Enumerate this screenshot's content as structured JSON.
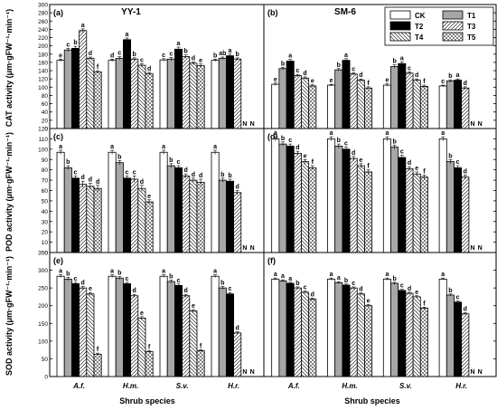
{
  "chart_data": [
    {
      "id": "a",
      "panel_label": "(a)",
      "title": "YY-1",
      "type": "bar",
      "ylabel": "CAT activity (μm·gFW⁻¹·min⁻¹)",
      "ylim": [
        0,
        300
      ],
      "yticks": [
        0,
        20,
        40,
        60,
        80,
        100,
        120,
        140,
        160,
        180,
        200,
        220,
        240,
        260,
        280,
        300
      ],
      "categories": [
        "A.f.",
        "H.m.",
        "S.v.",
        "H.r."
      ],
      "values": [
        [
          165,
          190,
          194,
          237,
          170,
          137
        ],
        [
          165,
          170,
          215,
          168,
          153,
          133
        ],
        [
          166,
          168,
          192,
          174,
          158,
          152
        ],
        [
          165,
          170,
          176,
          168,
          null,
          null
        ]
      ],
      "errors": [
        [
          3,
          4,
          5,
          4,
          3,
          3
        ],
        [
          3,
          4,
          4,
          3,
          4,
          3
        ],
        [
          3,
          4,
          5,
          4,
          3,
          4
        ],
        [
          3,
          3,
          4,
          3,
          null,
          null
        ]
      ],
      "letters": [
        [
          "e",
          "c",
          "b",
          "a",
          "d",
          "f"
        ],
        [
          "d",
          "c",
          "a",
          "b",
          "c",
          "d"
        ],
        [
          "c",
          "c",
          "a",
          "b",
          "d",
          "e"
        ],
        [
          "b",
          "ab",
          "a",
          "b",
          "N",
          "N"
        ]
      ]
    },
    {
      "id": "b",
      "panel_label": "(b)",
      "title": "SM-6",
      "type": "bar",
      "ylim": [
        0,
        300
      ],
      "categories": [
        "A.f.",
        "H.m.",
        "S.v.",
        "H.r."
      ],
      "values": [
        [
          107,
          145,
          163,
          128,
          122,
          103
        ],
        [
          105,
          142,
          165,
          132,
          117,
          98
        ],
        [
          105,
          150,
          157,
          134,
          117,
          102
        ],
        [
          103,
          115,
          117,
          98,
          null,
          null
        ]
      ],
      "errors": [
        [
          3,
          3,
          4,
          3,
          3,
          3
        ],
        [
          2,
          3,
          4,
          3,
          3,
          3
        ],
        [
          3,
          4,
          4,
          3,
          3,
          3
        ],
        [
          2,
          3,
          3,
          3,
          null,
          null
        ]
      ],
      "letters": [
        [
          "e",
          "b",
          "a",
          "c",
          "d",
          "e"
        ],
        [
          "e",
          "b",
          "a",
          "c",
          "d",
          "f"
        ],
        [
          "e",
          "b",
          "a",
          "c",
          "d",
          "f"
        ],
        [
          "c",
          "b",
          "a",
          "d",
          "N",
          "N"
        ]
      ],
      "legend": [
        "CK",
        "T1",
        "T2",
        "T3",
        "T4",
        "T5"
      ]
    },
    {
      "id": "c",
      "panel_label": "(c)",
      "title": "",
      "type": "bar",
      "ylabel": "POD activity (μm·gFW⁻¹·min⁻¹)",
      "ylim": [
        0,
        120
      ],
      "yticks": [
        0,
        10,
        20,
        30,
        40,
        50,
        60,
        70,
        80,
        90,
        100,
        110,
        120
      ],
      "categories": [
        "A.f.",
        "H.m.",
        "S.v.",
        "H.r."
      ],
      "values": [
        [
          97,
          82,
          72,
          66,
          64,
          62
        ],
        [
          97,
          87,
          72,
          71,
          62,
          49
        ],
        [
          97,
          84,
          82,
          74,
          70,
          68
        ],
        [
          97,
          70,
          69,
          58,
          null,
          null
        ]
      ],
      "errors": [
        [
          2,
          2,
          2,
          3,
          3,
          3
        ],
        [
          2,
          2,
          2,
          3,
          3,
          2
        ],
        [
          2,
          2,
          2,
          2,
          2,
          3
        ],
        [
          2,
          2,
          2,
          2,
          null,
          null
        ]
      ],
      "letters": [
        [
          "a",
          "b",
          "c",
          "d",
          "d",
          "d"
        ],
        [
          "a",
          "b",
          "c",
          "c",
          "d",
          "e"
        ],
        [
          "a",
          "b",
          "c",
          "d",
          "d",
          "d"
        ],
        [
          "a",
          "b",
          "b",
          "d",
          "N",
          "N"
        ]
      ]
    },
    {
      "id": "d",
      "panel_label": "(d)",
      "title": "",
      "type": "bar",
      "ylim": [
        0,
        120
      ],
      "categories": [
        "A.f.",
        "H.m.",
        "S.v.",
        "H.r."
      ],
      "values": [
        [
          110,
          105,
          103,
          96,
          88,
          82
        ],
        [
          110,
          103,
          100,
          91,
          84,
          78
        ],
        [
          110,
          102,
          92,
          81,
          76,
          73
        ],
        [
          110,
          88,
          82,
          73,
          null,
          null
        ]
      ],
      "errors": [
        [
          2,
          2,
          2,
          2,
          2,
          2
        ],
        [
          2,
          2,
          2,
          2,
          2,
          2
        ],
        [
          2,
          2,
          2,
          2,
          2,
          2
        ],
        [
          2,
          2,
          2,
          2,
          null,
          null
        ]
      ],
      "letters": [
        [
          "a",
          "b",
          "c",
          "d",
          "e",
          "f"
        ],
        [
          "a",
          "b",
          "c",
          "d",
          "e",
          "f"
        ],
        [
          "a",
          "b",
          "c",
          "d",
          "e",
          "f"
        ],
        [
          "a",
          "b",
          "c",
          "d",
          "N",
          "N"
        ]
      ]
    },
    {
      "id": "e",
      "panel_label": "(e)",
      "title": "",
      "type": "bar",
      "ylabel": "SOD activity (μm·gFW⁻¹·min⁻¹)",
      "ylim": [
        0,
        350
      ],
      "yticks": [
        0,
        50,
        100,
        150,
        200,
        250,
        300,
        350
      ],
      "categories": [
        "A.f.",
        "H.m.",
        "S.v.",
        "H.r."
      ],
      "values": [
        [
          283,
          275,
          262,
          250,
          233,
          63
        ],
        [
          283,
          278,
          262,
          228,
          165,
          70
        ],
        [
          283,
          268,
          257,
          228,
          185,
          73
        ],
        [
          283,
          250,
          233,
          123,
          null,
          null
        ]
      ],
      "errors": [
        [
          4,
          5,
          4,
          4,
          4,
          3
        ],
        [
          4,
          4,
          4,
          4,
          4,
          3
        ],
        [
          4,
          4,
          4,
          4,
          4,
          3
        ],
        [
          4,
          4,
          4,
          3,
          null,
          null
        ]
      ],
      "letters": [
        [
          "a",
          "b",
          "c",
          "d",
          "e",
          "f"
        ],
        [
          "a",
          "b",
          "c",
          "d",
          "e",
          "f"
        ],
        [
          "a",
          "b",
          "c",
          "d",
          "e",
          "f"
        ],
        [
          "a",
          "b",
          "c",
          "d",
          "N",
          "N"
        ]
      ]
    },
    {
      "id": "f",
      "panel_label": "(f)",
      "title": "",
      "type": "bar",
      "ylim": [
        0,
        350
      ],
      "categories": [
        "A.f.",
        "H.m.",
        "S.v.",
        "H.r."
      ],
      "values": [
        [
          275,
          270,
          263,
          250,
          238,
          218
        ],
        [
          275,
          265,
          258,
          250,
          233,
          200
        ],
        [
          275,
          263,
          243,
          235,
          225,
          193
        ],
        [
          275,
          230,
          210,
          177,
          null,
          null
        ]
      ],
      "errors": [
        [
          3,
          3,
          3,
          3,
          3,
          3
        ],
        [
          3,
          3,
          3,
          3,
          3,
          3
        ],
        [
          3,
          3,
          3,
          3,
          3,
          3
        ],
        [
          3,
          3,
          3,
          3,
          null,
          null
        ]
      ],
      "letters": [
        [
          "a",
          "a",
          "a",
          "b",
          "c",
          "d"
        ],
        [
          "a",
          "a",
          "b",
          "c",
          "d",
          "e"
        ],
        [
          "a",
          "b",
          "c",
          "d",
          "e",
          "f"
        ],
        [
          "a",
          "b",
          "c",
          "d",
          "N",
          "N"
        ]
      ]
    }
  ],
  "series": [
    "CK",
    "T1",
    "T2",
    "T3",
    "T4",
    "T5"
  ],
  "series_fill": [
    "#ffffff",
    "#a6a6a6",
    "#000000",
    "#ffffff",
    "#ffffff",
    "#ffffff"
  ],
  "series_pattern": [
    "solid",
    "solid",
    "solid",
    "forward-hatch",
    "back-hatch",
    "cross-hatch"
  ],
  "xlabel": "Shrub species",
  "yticklabels": {
    "cat": [
      "0",
      "20",
      "40",
      "60",
      "80",
      "100",
      "120",
      "140",
      "160",
      "180",
      "200",
      "220",
      "240",
      "260",
      "280",
      "300"
    ],
    "pod": [
      "0",
      "10",
      "20",
      "30",
      "40",
      "50",
      "60",
      "70",
      "80",
      "90",
      "100",
      "110",
      "120"
    ],
    "sod": [
      "0",
      "50",
      "100",
      "150",
      "200",
      "250",
      "300",
      "350"
    ]
  }
}
